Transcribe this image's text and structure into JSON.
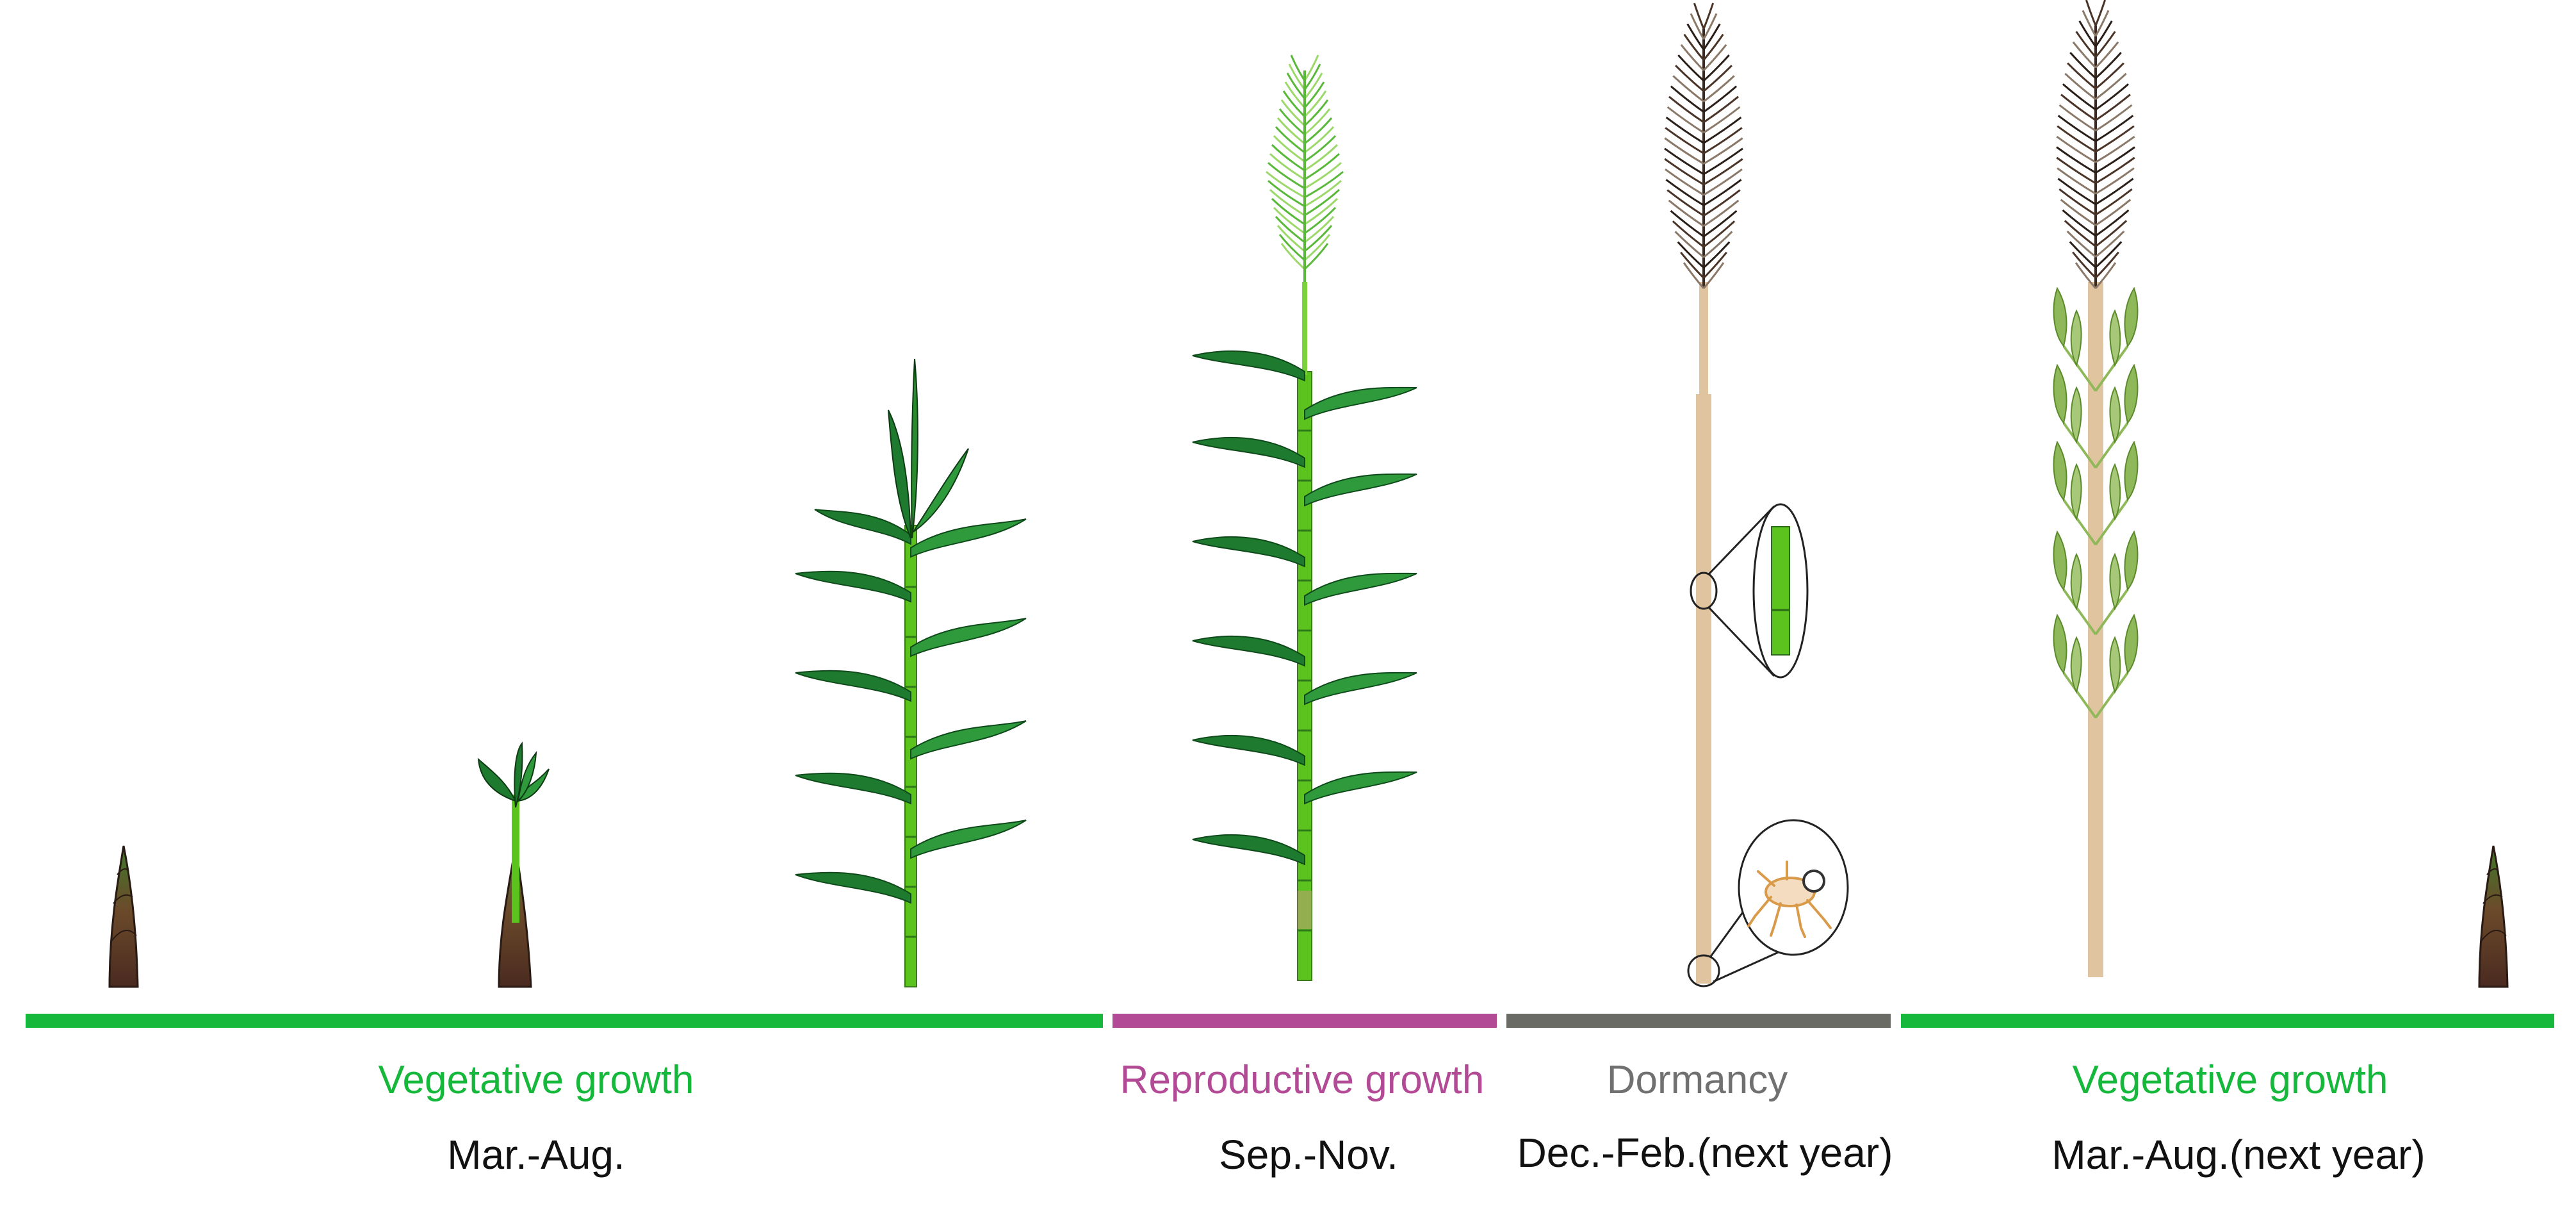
{
  "colors": {
    "vegetative": "#15b83a",
    "reproductive": "#b24a96",
    "dormancy": "#6b6b66",
    "leaf_dark": "#1e7a2e",
    "leaf_mid": "#2e9a3c",
    "stem_green": "#5cc21e",
    "dry_stem": "#e0c4a0",
    "shoot_brown": "#6b3a2a",
    "panicle_dark": "#4a3428",
    "seedling_leaf": "#8fb85a"
  },
  "phases": [
    {
      "id": "veg1",
      "label": "Vegetative growth",
      "period": "Mar.-Aug.",
      "color_key": "vegetative"
    },
    {
      "id": "rep",
      "label": "Reproductive growth",
      "period": "Sep.-Nov.",
      "color_key": "reproductive"
    },
    {
      "id": "dorm",
      "label": "Dormancy",
      "period": "Dec.-Feb.(next year)",
      "color_key": "dormancy"
    },
    {
      "id": "veg2",
      "label": "Vegetative growth",
      "period": "Mar.-Aug.(next year)",
      "color_key": "vegetative"
    }
  ],
  "icons": [
    "bamboo-shoot-icon",
    "young-shoot-icon",
    "leafy-culm-icon",
    "flowering-culm-icon",
    "dormant-culm-icon",
    "resprouting-culm-icon",
    "bamboo-shoot-icon",
    "magnifier-stem-section-icon",
    "magnifier-insect-icon"
  ]
}
